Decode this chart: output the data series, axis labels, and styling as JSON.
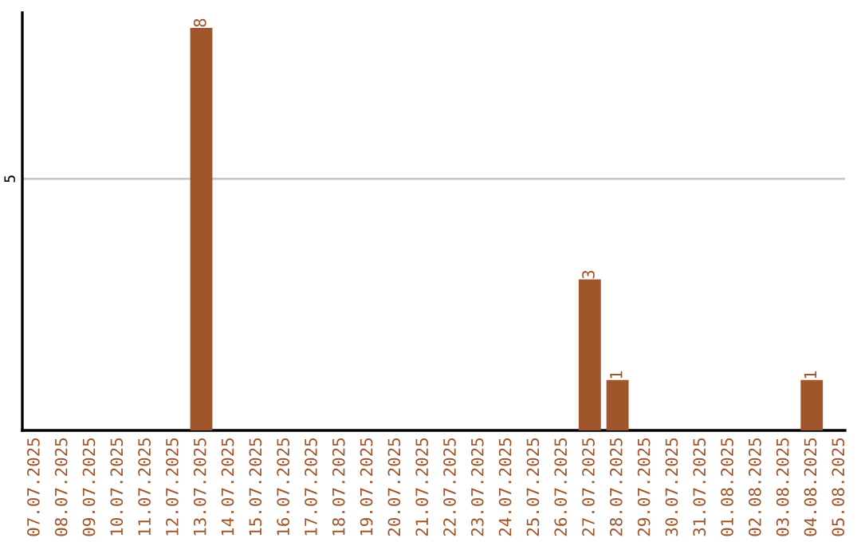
{
  "chart_data": {
    "type": "bar",
    "categories": [
      "07.07.2025",
      "08.07.2025",
      "09.07.2025",
      "10.07.2025",
      "11.07.2025",
      "12.07.2025",
      "13.07.2025",
      "14.07.2025",
      "15.07.2025",
      "16.07.2025",
      "17.07.2025",
      "18.07.2025",
      "19.07.2025",
      "20.07.2025",
      "21.07.2025",
      "22.07.2025",
      "23.07.2025",
      "24.07.2025",
      "25.07.2025",
      "26.07.2025",
      "27.07.2025",
      "28.07.2025",
      "29.07.2025",
      "30.07.2025",
      "31.07.2025",
      "01.08.2025",
      "02.08.2025",
      "03.08.2025",
      "04.08.2025",
      "05.08.2025"
    ],
    "values": [
      0,
      0,
      0,
      0,
      0,
      0,
      8,
      0,
      0,
      0,
      0,
      0,
      0,
      0,
      0,
      0,
      0,
      0,
      0,
      0,
      3,
      1,
      0,
      0,
      0,
      0,
      0,
      0,
      1,
      0
    ],
    "value_labels": [
      null,
      null,
      null,
      null,
      null,
      null,
      "8",
      null,
      null,
      null,
      null,
      null,
      null,
      null,
      null,
      null,
      null,
      null,
      null,
      null,
      "3",
      "1",
      null,
      null,
      null,
      null,
      null,
      null,
      "1",
      null
    ],
    "color": "#a0562a",
    "ylim": [
      0,
      8.3
    ],
    "yticks": [
      5
    ],
    "grid": "y",
    "legend": false
  }
}
